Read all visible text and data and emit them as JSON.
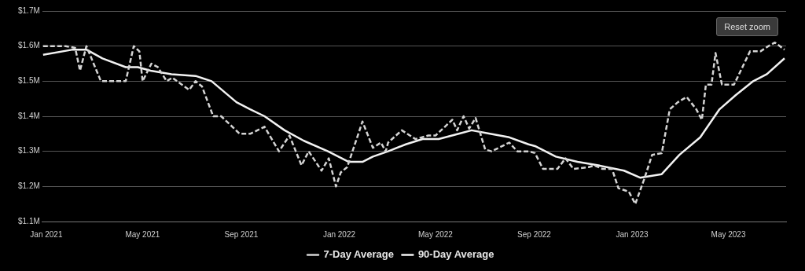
{
  "chart_data": {
    "type": "line",
    "xlim": [
      "2020-12-27",
      "2023-07-12"
    ],
    "xticks": [
      {
        "value": "2021-01-01",
        "label": "Jan 2021"
      },
      {
        "value": "2021-05-01",
        "label": "May 2021"
      },
      {
        "value": "2021-09-01",
        "label": "Sep 2021"
      },
      {
        "value": "2022-01-01",
        "label": "Jan 2022"
      },
      {
        "value": "2022-05-01",
        "label": "May 2022"
      },
      {
        "value": "2022-09-01",
        "label": "Sep 2022"
      },
      {
        "value": "2023-01-01",
        "label": "Jan 2023"
      },
      {
        "value": "2023-05-01",
        "label": "May 2023"
      }
    ],
    "ylim": [
      1.1,
      1.7
    ],
    "yticks": [
      {
        "value": 1.1,
        "label": "$1.1M"
      },
      {
        "value": 1.2,
        "label": "$1.2M"
      },
      {
        "value": 1.3,
        "label": "$1.3M"
      },
      {
        "value": 1.4,
        "label": "$1.4M"
      },
      {
        "value": 1.5,
        "label": "$1.5M"
      },
      {
        "value": 1.6,
        "label": "$1.6M"
      },
      {
        "value": 1.7,
        "label": "$1.7M"
      }
    ],
    "grid": "y",
    "legend": "bottom",
    "marker": "none",
    "annotations": [
      "Reset zoom"
    ],
    "series": [
      {
        "name": "7-Day Average",
        "color": "#d4d4d4",
        "line_style": "dashed",
        "x": [
          "2020-12-28",
          "2021-01-25",
          "2021-02-06",
          "2021-02-12",
          "2021-02-20",
          "2021-03-10",
          "2021-04-10",
          "2021-04-20",
          "2021-04-27",
          "2021-05-01",
          "2021-05-12",
          "2021-05-20",
          "2021-05-31",
          "2021-06-07",
          "2021-06-28",
          "2021-07-06",
          "2021-07-14",
          "2021-07-28",
          "2021-08-07",
          "2021-08-30",
          "2021-09-12",
          "2021-09-30",
          "2021-10-18",
          "2021-10-31",
          "2021-11-15",
          "2021-11-24",
          "2021-12-10",
          "2021-12-19",
          "2021-12-28",
          "2022-01-03",
          "2022-01-11",
          "2022-01-30",
          "2022-02-12",
          "2022-02-22",
          "2022-02-28",
          "2022-03-03",
          "2022-03-20",
          "2022-04-06",
          "2022-04-22",
          "2022-05-01",
          "2022-05-22",
          "2022-05-28",
          "2022-06-05",
          "2022-06-12",
          "2022-06-20",
          "2022-07-02",
          "2022-07-10",
          "2022-08-01",
          "2022-08-11",
          "2022-08-25",
          "2022-09-02",
          "2022-09-12",
          "2022-09-30",
          "2022-10-10",
          "2022-10-20",
          "2022-11-08",
          "2022-11-15",
          "2022-11-25",
          "2022-12-07",
          "2022-12-15",
          "2022-12-28",
          "2023-01-05",
          "2023-01-16",
          "2023-01-26",
          "2023-02-07",
          "2023-02-17",
          "2023-02-27",
          "2023-03-10",
          "2023-03-22",
          "2023-03-29",
          "2023-04-03",
          "2023-04-10",
          "2023-04-15",
          "2023-04-23",
          "2023-05-08",
          "2023-05-28",
          "2023-06-10",
          "2023-06-20",
          "2023-06-28",
          "2023-07-10"
        ],
        "values": [
          1.6,
          1.6,
          1.595,
          1.53,
          1.6,
          1.5,
          1.5,
          1.6,
          1.585,
          1.5,
          1.55,
          1.54,
          1.5,
          1.51,
          1.475,
          1.5,
          1.485,
          1.4,
          1.4,
          1.35,
          1.35,
          1.37,
          1.3,
          1.345,
          1.26,
          1.3,
          1.245,
          1.28,
          1.2,
          1.24,
          1.255,
          1.385,
          1.31,
          1.325,
          1.3,
          1.325,
          1.36,
          1.335,
          1.345,
          1.345,
          1.39,
          1.36,
          1.4,
          1.365,
          1.395,
          1.305,
          1.3,
          1.325,
          1.3,
          1.3,
          1.295,
          1.25,
          1.25,
          1.28,
          1.25,
          1.255,
          1.26,
          1.25,
          1.25,
          1.195,
          1.185,
          1.15,
          1.22,
          1.29,
          1.295,
          1.42,
          1.44,
          1.455,
          1.42,
          1.39,
          1.49,
          1.49,
          1.58,
          1.49,
          1.49,
          1.585,
          1.585,
          1.6,
          1.61,
          1.59
        ]
      },
      {
        "name": "90-Day Average",
        "color": "#f2f2f2",
        "line_style": "solid",
        "x": [
          "2020-12-28",
          "2021-02-03",
          "2021-02-20",
          "2021-03-12",
          "2021-04-10",
          "2021-04-25",
          "2021-05-11",
          "2021-06-06",
          "2021-07-06",
          "2021-07-26",
          "2021-08-26",
          "2021-09-12",
          "2021-09-30",
          "2021-10-25",
          "2021-11-18",
          "2021-12-18",
          "2022-01-13",
          "2022-01-30",
          "2022-02-12",
          "2022-03-03",
          "2022-03-25",
          "2022-04-15",
          "2022-05-05",
          "2022-05-30",
          "2022-06-15",
          "2022-07-08",
          "2022-08-01",
          "2022-08-25",
          "2022-09-02",
          "2022-09-28",
          "2022-10-25",
          "2022-11-20",
          "2022-12-22",
          "2023-01-11",
          "2023-02-07",
          "2023-03-01",
          "2023-03-27",
          "2023-04-20",
          "2023-05-10",
          "2023-06-01",
          "2023-06-18",
          "2023-07-10"
        ],
        "values": [
          1.575,
          1.59,
          1.59,
          1.565,
          1.54,
          1.54,
          1.53,
          1.52,
          1.515,
          1.5,
          1.44,
          1.42,
          1.4,
          1.36,
          1.33,
          1.3,
          1.27,
          1.27,
          1.285,
          1.3,
          1.32,
          1.335,
          1.335,
          1.35,
          1.36,
          1.35,
          1.34,
          1.32,
          1.315,
          1.285,
          1.27,
          1.26,
          1.245,
          1.225,
          1.235,
          1.29,
          1.34,
          1.42,
          1.46,
          1.5,
          1.52,
          1.565
        ]
      }
    ]
  }
}
